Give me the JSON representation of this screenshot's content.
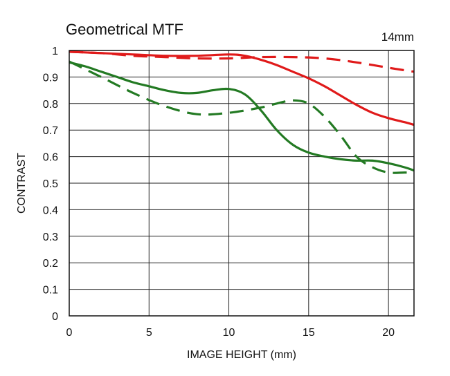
{
  "chart_data": {
    "type": "line",
    "title": "Geometrical MTF",
    "annotation": "14mm",
    "xlabel": "IMAGE HEIGHT (mm)",
    "ylabel": "CONTRAST",
    "xlim": [
      0,
      21.6
    ],
    "ylim": [
      0,
      1
    ],
    "x_ticks": [
      0,
      5,
      10,
      15,
      20
    ],
    "y_ticks": [
      0,
      0.1,
      0.2,
      0.3,
      0.4,
      0.5,
      0.6,
      0.7,
      0.8,
      0.9,
      1
    ],
    "y_tick_labels": [
      "0",
      "0.1",
      "0.2",
      "0.3",
      "0.4",
      "0.5",
      "0.6",
      "0.7",
      "0.8",
      "0.9",
      "1"
    ],
    "grid": true,
    "series": [
      {
        "color": "#e01a1a",
        "dash": "solid",
        "x": [
          0,
          2,
          4,
          6,
          8,
          10,
          11,
          12,
          13,
          14,
          15,
          16,
          17,
          18,
          19,
          20,
          21,
          21.6
        ],
        "y": [
          0.995,
          0.99,
          0.985,
          0.98,
          0.98,
          0.985,
          0.98,
          0.965,
          0.945,
          0.92,
          0.895,
          0.865,
          0.83,
          0.795,
          0.765,
          0.745,
          0.73,
          0.72
        ]
      },
      {
        "color": "#e01a1a",
        "dash": "dashed",
        "x": [
          0,
          2,
          4,
          6,
          8,
          10,
          12,
          14,
          16,
          18,
          20,
          21.6
        ],
        "y": [
          0.995,
          0.99,
          0.98,
          0.975,
          0.97,
          0.97,
          0.975,
          0.975,
          0.97,
          0.955,
          0.935,
          0.92
        ]
      },
      {
        "color": "#237a23",
        "dash": "solid",
        "x": [
          0,
          1,
          2,
          3,
          4,
          5,
          6,
          7,
          8,
          9,
          10,
          11,
          12,
          13,
          14,
          15,
          16,
          17,
          18,
          19,
          20,
          21,
          21.6
        ],
        "y": [
          0.955,
          0.94,
          0.92,
          0.9,
          0.88,
          0.865,
          0.85,
          0.84,
          0.84,
          0.85,
          0.855,
          0.835,
          0.775,
          0.7,
          0.645,
          0.615,
          0.6,
          0.59,
          0.585,
          0.585,
          0.575,
          0.56,
          0.548
        ]
      },
      {
        "color": "#237a23",
        "dash": "dashed",
        "x": [
          0,
          2,
          4,
          6,
          8,
          10,
          12,
          13,
          14,
          15,
          16,
          17,
          18,
          19,
          20,
          21,
          21.6
        ],
        "y": [
          0.958,
          0.9,
          0.84,
          0.79,
          0.76,
          0.765,
          0.785,
          0.8,
          0.812,
          0.8,
          0.75,
          0.68,
          0.6,
          0.56,
          0.54,
          0.54,
          0.54
        ]
      }
    ]
  }
}
